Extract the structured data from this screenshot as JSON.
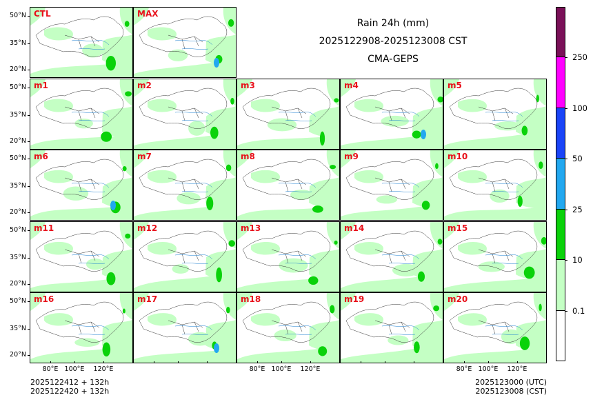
{
  "title": {
    "line1": "Rain 24h (mm)",
    "line2": "2025122908-2025123008 CST",
    "line3": "CMA-GEPS"
  },
  "panels": [
    "CTL",
    "MAX",
    "m1",
    "m2",
    "m3",
    "m4",
    "m5",
    "m6",
    "m7",
    "m8",
    "m9",
    "m10",
    "m11",
    "m12",
    "m13",
    "m14",
    "m15",
    "m16",
    "m17",
    "m18",
    "m19",
    "m20"
  ],
  "lat_labels": [
    "50°N",
    "35°N",
    "20°N"
  ],
  "lon_labels": [
    "80°E",
    "100°E",
    "120°E"
  ],
  "colorbar": {
    "colors": [
      "#ffffff",
      "#c4ffc4",
      "#0ad20a",
      "#22a8f0",
      "#1a44f8",
      "#ff00ff",
      "#7a1058"
    ],
    "labels": [
      "0.1",
      "10",
      "25",
      "50",
      "100",
      "250"
    ]
  },
  "footer": {
    "left_line1": "2025122412 + 132h",
    "left_line2": "2025122420 + 132h",
    "right_line1": "2025123000 (UTC)",
    "right_line2": "2025123008 (CST)"
  },
  "colors": {
    "light_rain": "#c4ffc4",
    "moderate_rain": "#0ad20a",
    "heavy_rain": "#22a8f0",
    "panel_label": "#e8101a"
  }
}
